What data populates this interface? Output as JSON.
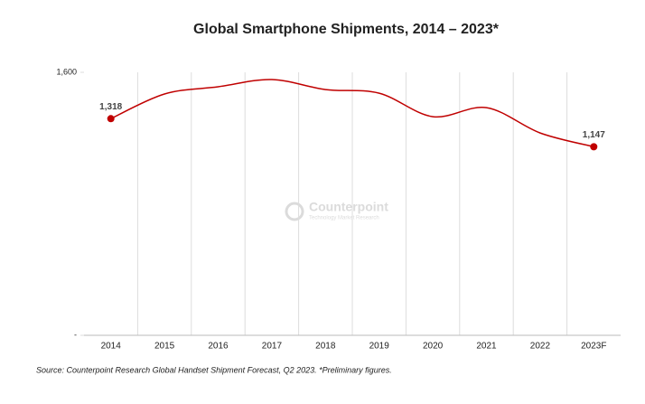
{
  "chart_data": {
    "type": "line",
    "title": "Global Smartphone Shipments, 2014 – 2023*",
    "categories": [
      "2014",
      "2015",
      "2016",
      "2017",
      "2018",
      "2019",
      "2020",
      "2021",
      "2022",
      "2023F"
    ],
    "series": [
      {
        "name": "Shipments",
        "color": "#c00000",
        "values": [
          1318,
          1468,
          1512,
          1556,
          1495,
          1473,
          1330,
          1385,
          1231,
          1147
        ],
        "value_labels": [
          "1,318",
          null,
          null,
          null,
          null,
          null,
          null,
          null,
          null,
          "1,147"
        ]
      }
    ],
    "ylim": [
      0,
      1600
    ],
    "yticks": [
      {
        "value": 0,
        "label": "-"
      },
      {
        "value": 1600,
        "label": "1,600"
      }
    ],
    "grid": true,
    "watermark": {
      "name": "Counterpoint",
      "tagline": "Technology Market Research"
    },
    "source": "Source:  Counterpoint Research Global Handset Shipment Forecast, Q2 2023. *Preliminary figures."
  }
}
